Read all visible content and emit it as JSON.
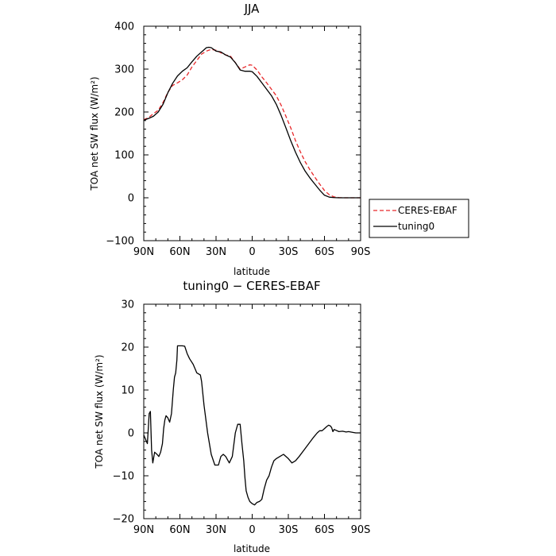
{
  "chart_data": [
    {
      "type": "line",
      "title": "JJA",
      "xlabel": "latitude",
      "ylabel": "TOA net SW flux (W/m²)",
      "xlim": [
        90,
        -90
      ],
      "ylim": [
        -100,
        400
      ],
      "xticks": [
        90,
        60,
        30,
        0,
        -30,
        -60,
        -90
      ],
      "xtick_labels": [
        "90N",
        "60N",
        "30N",
        "0",
        "30S",
        "60S",
        "90S"
      ],
      "yticks": [
        -100,
        0,
        100,
        200,
        300,
        400
      ],
      "ytick_labels": [
        "−100",
        "0",
        "100",
        "200",
        "300",
        "400"
      ],
      "legend_position": "right, outside bottom",
      "series": [
        {
          "name": "CERES-EBAF",
          "color": "#e8282a",
          "dash": true,
          "x": [
            90,
            86,
            82,
            78,
            74,
            70,
            66,
            62,
            58,
            54,
            50,
            46,
            42,
            38,
            34,
            30,
            26,
            22,
            18,
            14,
            10,
            6,
            2,
            0,
            -4,
            -8,
            -12,
            -16,
            -20,
            -24,
            -28,
            -32,
            -36,
            -40,
            -44,
            -48,
            -52,
            -56,
            -60,
            -64,
            -68,
            -72,
            -76,
            -80,
            -84,
            -88,
            -90
          ],
          "y": [
            182,
            187,
            196,
            204,
            222,
            246,
            262,
            268,
            275,
            286,
            305,
            320,
            335,
            342,
            346,
            344,
            338,
            333,
            330,
            315,
            300,
            305,
            310,
            309,
            298,
            282,
            268,
            253,
            238,
            216,
            190,
            163,
            133,
            107,
            84,
            65,
            48,
            32,
            17,
            7,
            2,
            0.5,
            0,
            0,
            0,
            0,
            0
          ]
        },
        {
          "name": "tuning0",
          "color": "#000000",
          "dash": false,
          "x": [
            90,
            86,
            82,
            78,
            74,
            70,
            66,
            62,
            58,
            54,
            50,
            46,
            42,
            38,
            36,
            34,
            30,
            26,
            22,
            18,
            14,
            10,
            6,
            2,
            0,
            -4,
            -8,
            -12,
            -16,
            -20,
            -24,
            -28,
            -32,
            -36,
            -40,
            -44,
            -48,
            -52,
            -56,
            -60,
            -64,
            -68,
            -72,
            -76,
            -80,
            -84,
            -88,
            -90
          ],
          "y": [
            181,
            185,
            190,
            200,
            218,
            245,
            267,
            284,
            295,
            303,
            317,
            330,
            340,
            350,
            351,
            350,
            342,
            340,
            333,
            328,
            315,
            298,
            295,
            295,
            294,
            283,
            268,
            253,
            238,
            218,
            192,
            163,
            133,
            106,
            82,
            62,
            46,
            32,
            18,
            6,
            1.5,
            0.5,
            0,
            0,
            0,
            0,
            0,
            0
          ]
        }
      ]
    },
    {
      "type": "line",
      "title": "tuning0 − CERES-EBAF",
      "xlabel": "latitude",
      "ylabel": "TOA net SW flux (W/m²)",
      "xlim": [
        90,
        -90
      ],
      "ylim": [
        -20,
        30
      ],
      "xticks": [
        90,
        60,
        30,
        0,
        -30,
        -60,
        -90
      ],
      "xtick_labels": [
        "90N",
        "60N",
        "30N",
        "0",
        "30S",
        "60S",
        "90S"
      ],
      "yticks": [
        -20,
        -10,
        0,
        10,
        20,
        30
      ],
      "ytick_labels": [
        "−20",
        "−10",
        "0",
        "10",
        "20",
        "30"
      ],
      "series": [
        {
          "color": "#000000",
          "dash": false,
          "x": [
            90,
            88.5,
            87,
            85.5,
            84.5,
            83.5,
            82.5,
            81,
            79,
            77.5,
            76,
            74.5,
            73.5,
            72.5,
            71.5,
            70,
            68.5,
            67,
            65.5,
            64.5,
            63.5,
            62.5,
            62,
            58,
            56,
            54,
            52,
            49,
            46,
            43,
            42,
            40,
            37,
            34,
            31,
            28,
            26,
            24,
            22,
            19,
            16.5,
            14,
            12,
            10,
            8.5,
            7,
            6,
            5,
            3.5,
            2,
            0,
            -2,
            -4,
            -6,
            -8,
            -10,
            -12,
            -14,
            -16,
            -18,
            -20,
            -23,
            -26,
            -30,
            -33,
            -36,
            -39,
            -43,
            -47,
            -51,
            -54,
            -56,
            -58,
            -60,
            -62,
            -63.5,
            -65,
            -66,
            -67,
            -68,
            -72,
            -75,
            -78,
            -80,
            -84,
            -86,
            -88,
            -90
          ],
          "y": [
            -0.5,
            -1.5,
            -2.5,
            4.5,
            5,
            -4,
            -7,
            -4.5,
            -5,
            -5.5,
            -4.5,
            -2.5,
            1,
            3,
            4,
            3.5,
            2.5,
            4.5,
            10,
            13,
            14,
            17,
            20.3,
            20.3,
            20.2,
            18.5,
            17.3,
            16,
            14,
            13.5,
            12,
            6.5,
            0,
            -5,
            -7.5,
            -7.5,
            -5.5,
            -5,
            -5.5,
            -7,
            -5.5,
            0,
            2,
            2,
            -2.5,
            -6.5,
            -10.5,
            -13.5,
            -15,
            -16,
            -16.5,
            -16.8,
            -16.2,
            -16,
            -15.5,
            -13,
            -11,
            -10,
            -8,
            -6.5,
            -6,
            -5.5,
            -5,
            -6,
            -7,
            -6.5,
            -5.5,
            -4,
            -2.5,
            -1,
            0,
            0.5,
            0.5,
            1,
            1.5,
            1.8,
            1.6,
            1.2,
            0.3,
            0.8,
            0.3,
            0.4,
            0.2,
            0.3,
            0.1,
            0,
            0,
            0
          ]
        }
      ]
    }
  ]
}
